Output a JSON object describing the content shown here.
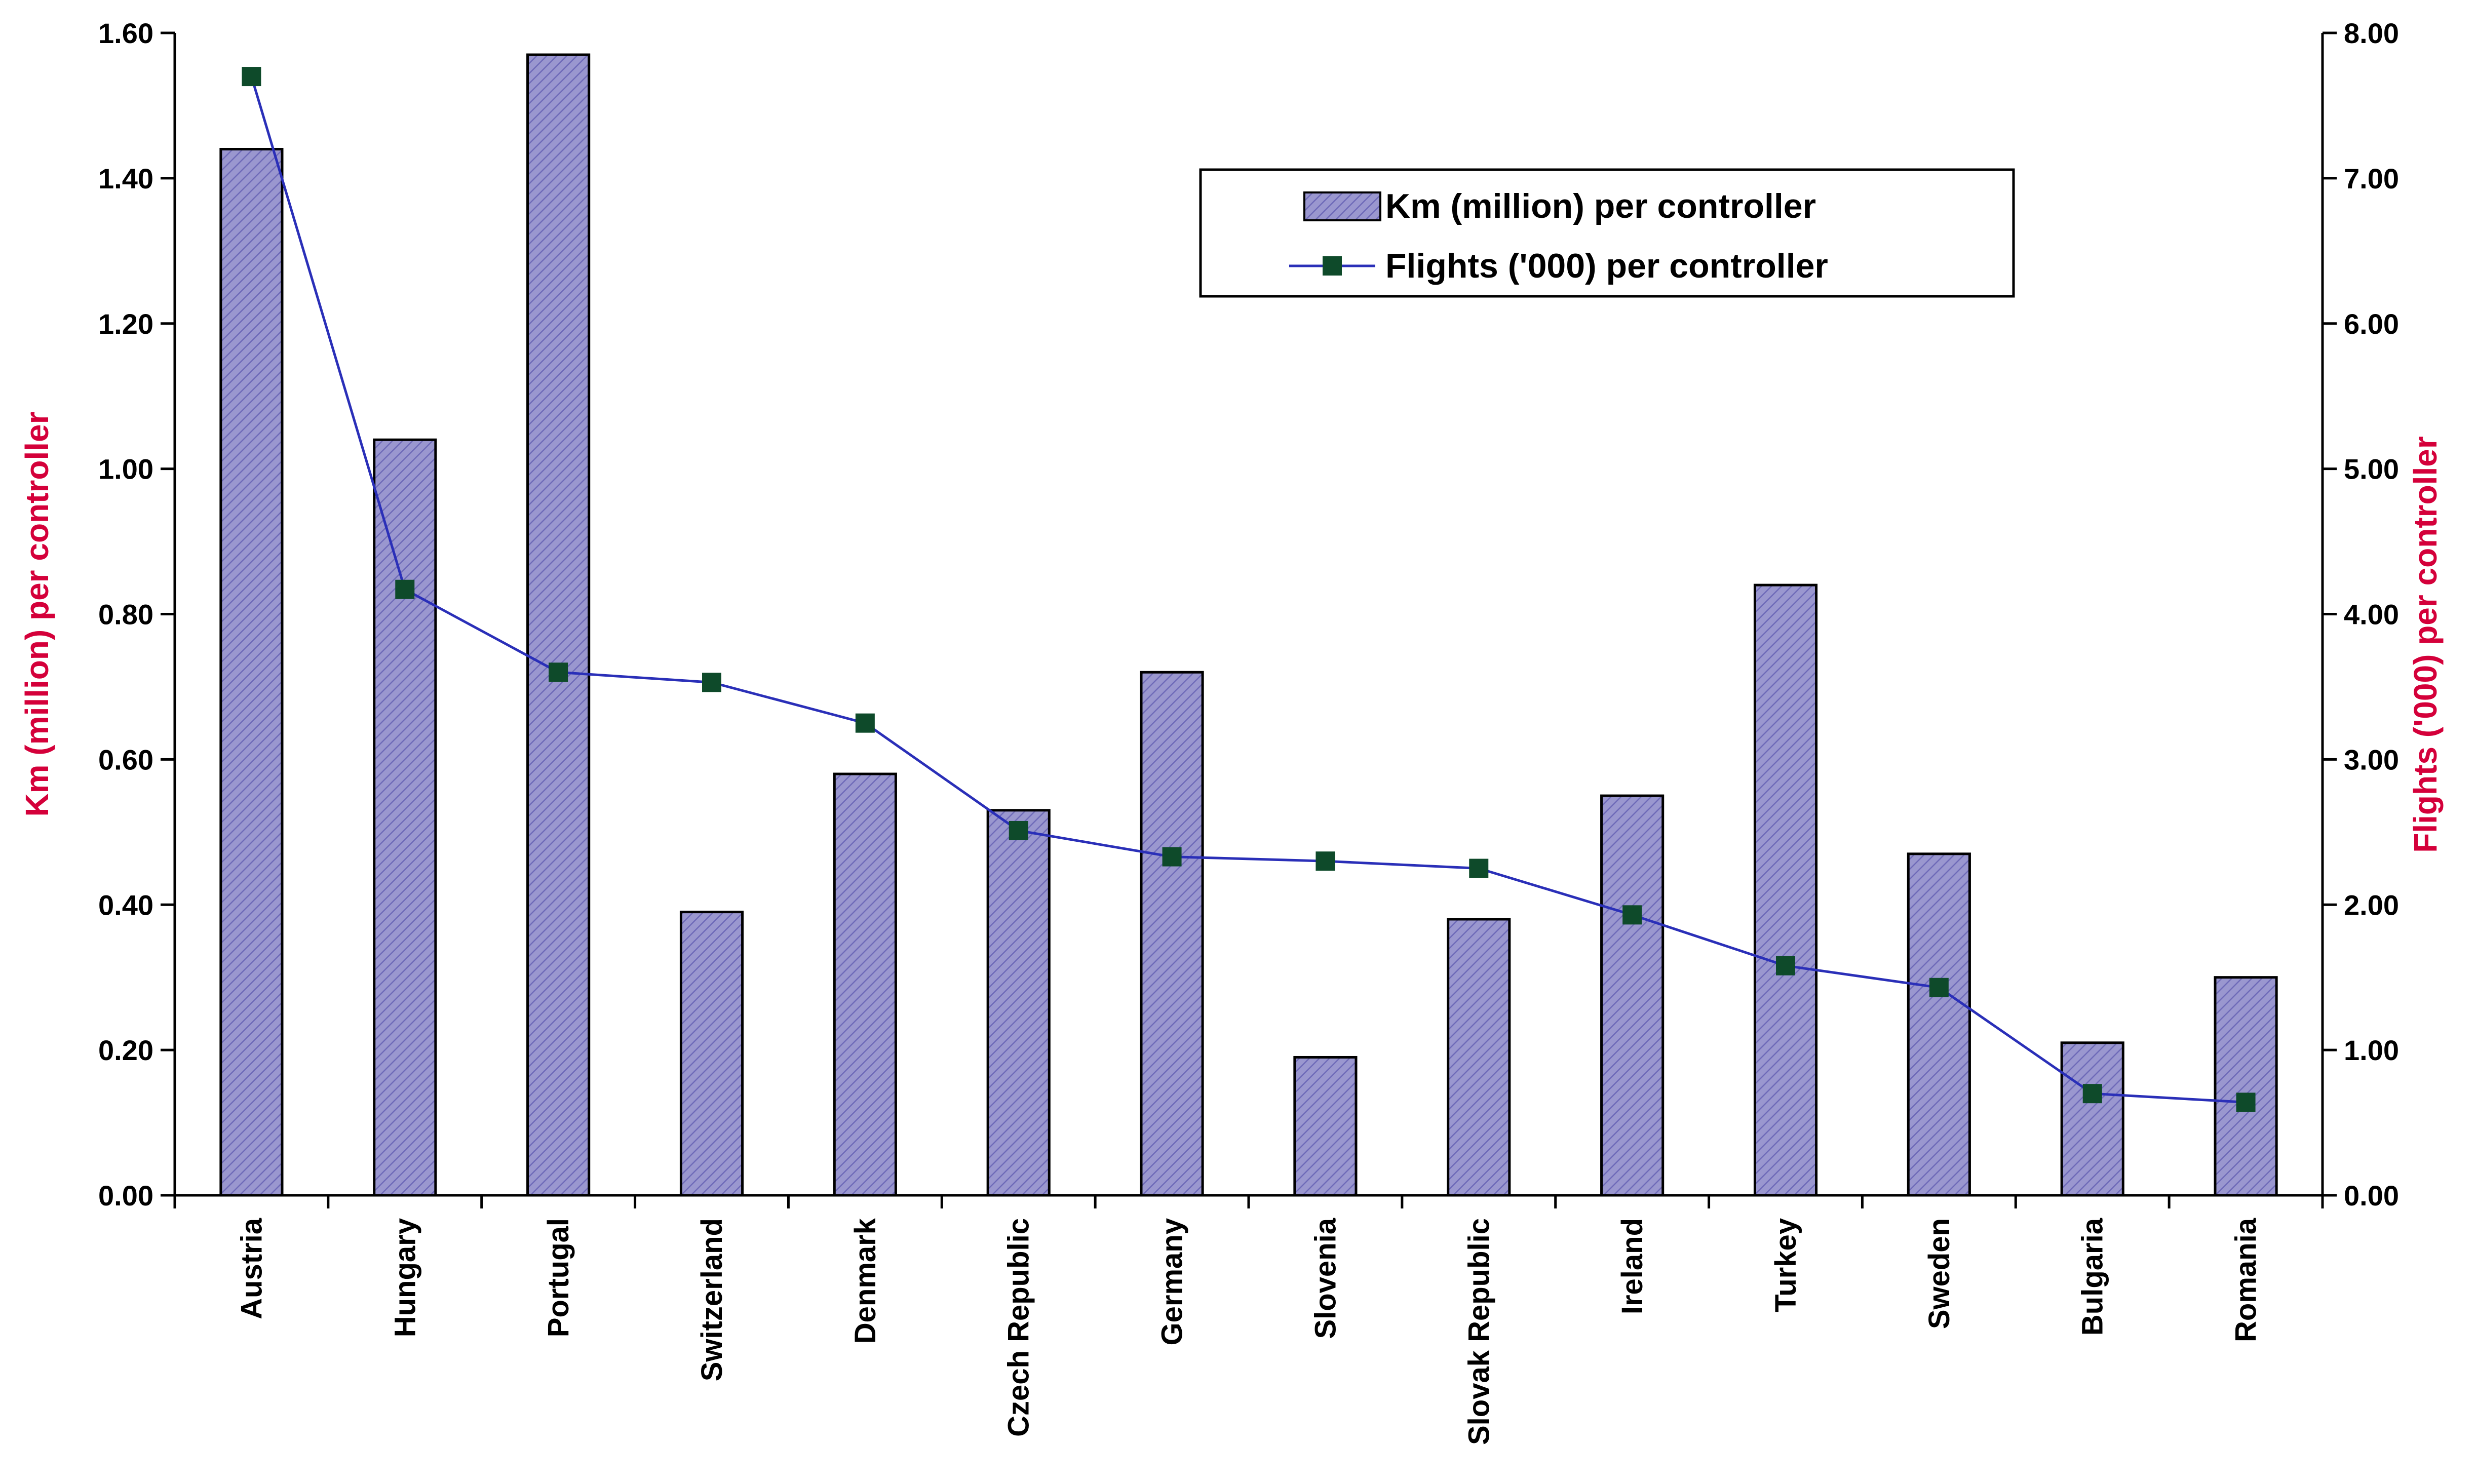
{
  "chart_data": {
    "type": "bar",
    "categories": [
      "Austria",
      "Hungary",
      "Portugal",
      "Switzerland",
      "Denmark",
      "Czech Republic",
      "Germany",
      "Slovenia",
      "Slovak Republic",
      "Ireland",
      "Turkey",
      "Sweden",
      "Bulgaria",
      "Romania"
    ],
    "series": [
      {
        "name": "Km (million) per controller",
        "type": "bar",
        "axis": "left",
        "values": [
          1.44,
          1.04,
          1.57,
          0.39,
          0.58,
          0.53,
          0.72,
          0.19,
          0.38,
          0.55,
          0.84,
          0.47,
          0.21,
          0.3
        ]
      },
      {
        "name": "Flights ('000) per controller",
        "type": "line",
        "axis": "right",
        "values": [
          7.7,
          4.17,
          3.6,
          3.53,
          3.25,
          2.51,
          2.33,
          2.3,
          2.25,
          1.93,
          1.58,
          1.43,
          0.7,
          0.64
        ]
      }
    ],
    "y_left": {
      "label": "Km (million) per controller",
      "range": [
        0,
        1.6
      ],
      "ticks": [
        "0.00",
        "0.20",
        "0.40",
        "0.60",
        "0.80",
        "1.00",
        "1.20",
        "1.40",
        "1.60"
      ]
    },
    "y_right": {
      "label": "Flights ('000) per controller",
      "range": [
        0,
        8
      ],
      "ticks": [
        "0.00",
        "1.00",
        "2.00",
        "3.00",
        "4.00",
        "5.00",
        "6.00",
        "7.00",
        "8.00"
      ]
    },
    "legend": {
      "placement": "top-right"
    },
    "grid": false,
    "colors": {
      "bar_fill": "#9a97cf",
      "bar_stroke": "#000000",
      "line": "#2a2fb8",
      "marker": "#0e4a2a",
      "axis_title": "#d4003a"
    }
  }
}
